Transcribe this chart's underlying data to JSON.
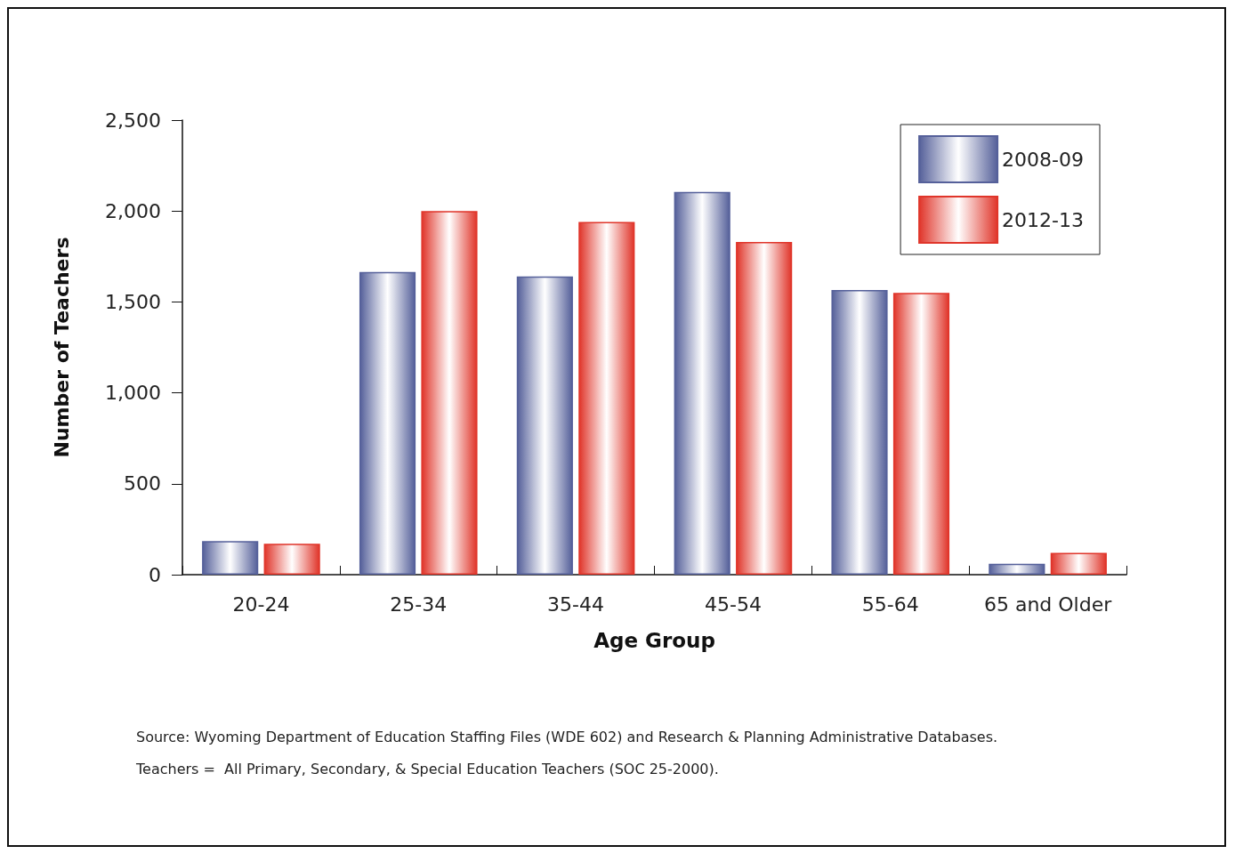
{
  "chart_data": {
    "type": "bar",
    "xlabel": "Age Group",
    "ylabel": "Number of Teachers",
    "categories": [
      "20-24",
      "25-34",
      "35-44",
      "45-54",
      "55-64",
      "65 and Older"
    ],
    "series": [
      {
        "name": "2008-09",
        "color": "#55609a",
        "values": [
          185,
          1665,
          1640,
          2105,
          1565,
          60
        ]
      },
      {
        "name": "2012-13",
        "color": "#e0352a",
        "values": [
          170,
          2000,
          1940,
          1830,
          1550,
          120
        ]
      }
    ],
    "ylim": [
      0,
      2500
    ],
    "yticks": [
      0,
      {
        "value": 500,
        "label": "500"
      },
      {
        "value": 1000,
        "label": "1,000"
      },
      {
        "value": 1500,
        "label": "1,500"
      },
      {
        "value": 2000,
        "label": "2,000"
      },
      {
        "value": 2500,
        "label": "2,500"
      }
    ],
    "grid": false,
    "legend": "top right",
    "annotations": [
      "Source: Wyoming Department of Education Staffing Files (WDE 602) and Research & Planning Administrative Databases.",
      "Teachers =  All Primary, Secondary, & Special Education Teachers (SOC 25-2000)."
    ]
  }
}
